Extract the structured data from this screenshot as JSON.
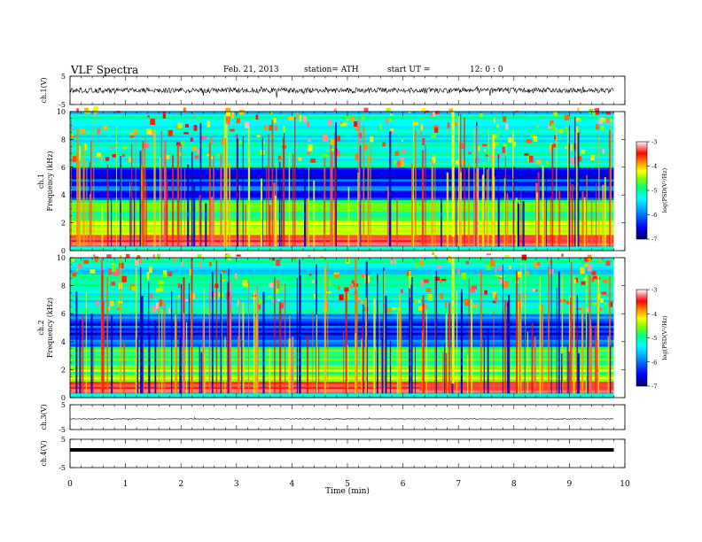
{
  "header": {
    "title": "VLF  Spectra",
    "date": "Feb. 21, 2013",
    "station": "station= ATH",
    "start_label": "start  UT  =",
    "start_value": "12: 0  : 0"
  },
  "chart_data": [
    {
      "type": "line",
      "name": "ch1-waveform",
      "ylabel": "ch.1(V)",
      "ylim": [
        -5,
        5
      ],
      "yticks": [
        "5",
        "-5"
      ],
      "x_range_min": [
        0,
        9.8
      ],
      "character": "noisy waveform near 0 V with sferic spikes"
    },
    {
      "type": "heatmap",
      "name": "ch1-spectrogram",
      "ylabel": "ch.1\nFrequency  (kHz)",
      "ylabel_line1": "ch.1",
      "ylabel_line2": "Frequency  (kHz)",
      "ylim": [
        0,
        10
      ],
      "yticks": [
        "0",
        "2",
        "4",
        "6",
        "8",
        "10"
      ],
      "colorbar": {
        "label": "log(PSD(V²/Hz)",
        "range": [
          -7,
          -3
        ],
        "ticks": [
          "-3",
          "-4",
          "-5",
          "-6",
          "-7"
        ]
      },
      "strong_bands_kHz": [
        0.4,
        0.8,
        1.9,
        3.4
      ],
      "quiet_band_kHz": [
        3.6,
        6.0
      ],
      "note": "broadband vertical sferics throughout; stronger emission after ~6.3 min"
    },
    {
      "type": "heatmap",
      "name": "ch2-spectrogram",
      "ylabel_line1": "ch.2",
      "ylabel_line2": "Frequency  (kHz)",
      "ylim": [
        0,
        10
      ],
      "yticks": [
        "0",
        "2",
        "4",
        "6",
        "8",
        "10"
      ],
      "colorbar": {
        "label": "log(PSD(V²/Hz)",
        "range": [
          -7,
          -3
        ],
        "ticks": [
          "-3",
          "-4",
          "-5",
          "-6",
          "-7"
        ]
      }
    },
    {
      "type": "line",
      "name": "ch3-waveform",
      "ylabel": "ch.3(V)",
      "ylim": [
        -5,
        5
      ],
      "yticks": [
        "5",
        "-5"
      ],
      "character": "flat near 0 V"
    },
    {
      "type": "line",
      "name": "ch4-waveform",
      "ylabel": "ch.4(V)",
      "ylim": [
        -5,
        5
      ],
      "yticks": [
        "5",
        "-5"
      ],
      "character": "thick constant band near 0 V"
    }
  ],
  "xaxis": {
    "label": "Time  (min)",
    "range": [
      0,
      10
    ],
    "ticks": [
      "0",
      "1",
      "2",
      "3",
      "4",
      "5",
      "6",
      "7",
      "8",
      "9",
      "10"
    ],
    "data_end_min": 9.8
  },
  "colors": {
    "background": "#ffffff",
    "axes": "#000000",
    "colormap": [
      "#000080",
      "#0000ff",
      "#00a0ff",
      "#00ffff",
      "#00ff80",
      "#80ff00",
      "#ffff00",
      "#ff8000",
      "#ff0000",
      "#ff8080",
      "#ffffff"
    ]
  }
}
